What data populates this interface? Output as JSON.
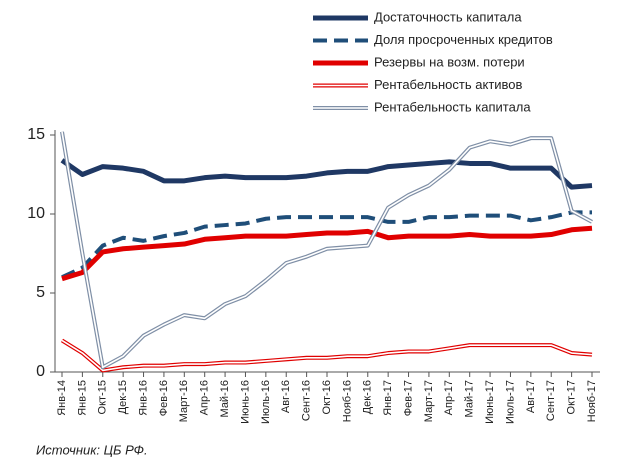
{
  "chart_data": {
    "type": "line",
    "categories": [
      "Янв-14",
      "Янв-15",
      "Окт-15",
      "Дек-15",
      "Янв-16",
      "Фев-16",
      "Март-16",
      "Апр-16",
      "Май-16",
      "Июнь-16",
      "Июль-16",
      "Авг-16",
      "Сент-16",
      "Окт-16",
      "Нояб-16",
      "Дек-16",
      "Янв-17",
      "Фев-17",
      "Март-17",
      "Апр-17",
      "Май-17",
      "Июнь-17",
      "Июль-17",
      "Авг-17",
      "Сент-17",
      "Окт-17",
      "Нояб-17"
    ],
    "series": [
      {
        "name": "Достаточность капитала",
        "color": "#1f3864",
        "style": "solid",
        "values": [
          13.4,
          12.5,
          13.0,
          12.9,
          12.7,
          12.1,
          12.1,
          12.3,
          12.4,
          12.3,
          12.3,
          12.3,
          12.4,
          12.6,
          12.7,
          12.7,
          13.0,
          13.1,
          13.2,
          13.3,
          13.2,
          13.2,
          12.9,
          12.9,
          12.9,
          11.7,
          11.8
        ]
      },
      {
        "name": "Доля просроченных кредитов",
        "color": "#1f4e79",
        "style": "dashed",
        "values": [
          6.0,
          6.6,
          8.0,
          8.5,
          8.3,
          8.6,
          8.8,
          9.2,
          9.3,
          9.4,
          9.7,
          9.8,
          9.8,
          9.8,
          9.8,
          9.8,
          9.5,
          9.5,
          9.8,
          9.8,
          9.9,
          9.9,
          9.9,
          9.6,
          9.8,
          10.1,
          10.1
        ]
      },
      {
        "name": "Резервы на возм. потери",
        "color": "#e00000",
        "style": "solid",
        "values": [
          5.9,
          6.3,
          7.6,
          7.8,
          7.9,
          8.0,
          8.1,
          8.4,
          8.5,
          8.6,
          8.6,
          8.6,
          8.7,
          8.8,
          8.8,
          8.9,
          8.5,
          8.6,
          8.6,
          8.6,
          8.7,
          8.6,
          8.6,
          8.6,
          8.7,
          9.0,
          9.1
        ]
      },
      {
        "name": "Рентабельность активов",
        "color": "#e00000",
        "style": "outline",
        "values": [
          2.0,
          1.2,
          0.1,
          0.3,
          0.4,
          0.4,
          0.5,
          0.5,
          0.6,
          0.6,
          0.7,
          0.8,
          0.9,
          0.9,
          1.0,
          1.0,
          1.2,
          1.3,
          1.3,
          1.5,
          1.7,
          1.7,
          1.7,
          1.7,
          1.7,
          1.2,
          1.1
        ]
      },
      {
        "name": "Рентабельность капитала",
        "color": "#7f8fa6",
        "style": "outline",
        "values": [
          15.2,
          7.5,
          0.3,
          1.0,
          2.3,
          3.0,
          3.6,
          3.4,
          4.3,
          4.8,
          5.8,
          6.9,
          7.3,
          7.8,
          7.9,
          8.0,
          10.4,
          11.2,
          11.8,
          12.8,
          14.2,
          14.6,
          14.4,
          14.8,
          14.8,
          10.2,
          9.5
        ]
      }
    ],
    "ylim": [
      0,
      15
    ],
    "yticks": [
      0,
      5,
      10,
      15
    ],
    "grid": false,
    "source": "Источник: ЦБ РФ."
  }
}
